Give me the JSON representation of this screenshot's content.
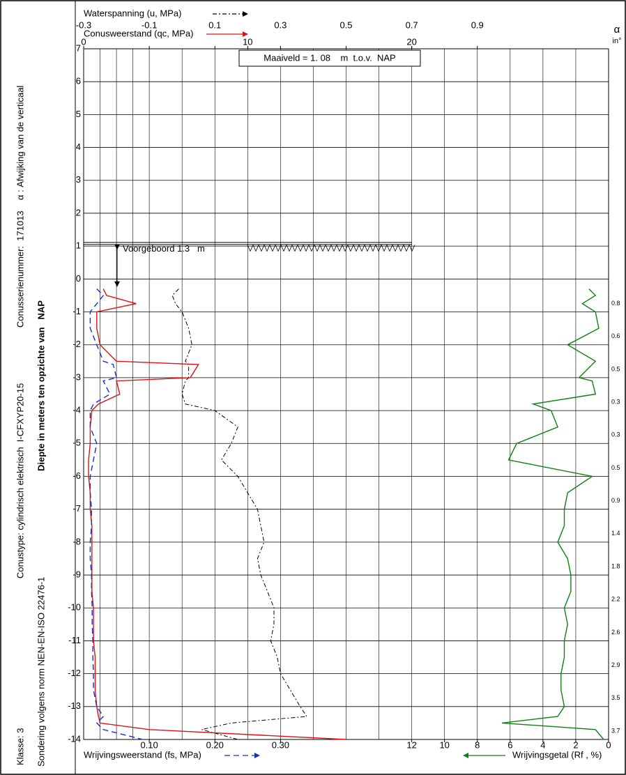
{
  "chart_data": {
    "type": "cpt",
    "ylabel": "Diepte in meters ten opzichte van   NAP",
    "ylim": [
      -14,
      7
    ],
    "yticks": [
      -14,
      -13,
      -12,
      -11,
      -10,
      -9,
      -8,
      -7,
      -6,
      -5,
      -4,
      -3,
      -2,
      -1,
      0,
      1,
      2,
      3,
      4,
      5,
      6,
      7
    ],
    "side_texts": [
      "Klasse: 3",
      "Conustype: cylindrisch elektrisch  I-CFXYP20-15",
      "Conusserienummer:  171013",
      "α : Afwijking van de verticaal",
      "Sondering volgens norm NEN-EN-ISO 22476-1"
    ],
    "maaiveld": {
      "value": 1.08,
      "label": "Maaiveld = 1. 08    m  t.o.v.  NAP"
    },
    "voorgeboord": {
      "value": 1.3,
      "label": "Voorgeboord 1.3   m"
    },
    "inclination_title": "α",
    "inclination_unit": "in°",
    "inclination": {
      "depth": [
        -1,
        -2,
        -3,
        -4,
        -5,
        -6,
        -7,
        -8,
        -9,
        -10,
        -11,
        -12,
        -13,
        -14
      ],
      "values": [
        0.8,
        0.6,
        0.5,
        0.3,
        0.3,
        0.5,
        0.9,
        1.4,
        1.8,
        2.2,
        2.6,
        2.9,
        3.5,
        3.7
      ]
    },
    "depth": [
      -0.3,
      -0.5,
      -0.75,
      -1,
      -1.5,
      -2,
      -2.5,
      -2.6,
      -3,
      -3.1,
      -3.5,
      -3.8,
      -4,
      -4.5,
      -5,
      -5.5,
      -6,
      -6.5,
      -7,
      -7.5,
      -8,
      -8.5,
      -9,
      -9.5,
      -10,
      -10.5,
      -11,
      -11.5,
      -12,
      -12.5,
      -13,
      -13.3,
      -13.5,
      -13.7,
      -14
    ],
    "series": [
      {
        "name": "Waterspanning (u, MPa)",
        "color": "#000000",
        "dash": "6 3 2 3",
        "position": "top1",
        "xlim": [
          -0.3,
          1.3
        ],
        "xticks": [
          -0.3,
          -0.1,
          0.1,
          0.3,
          0.5,
          0.7,
          0.9
        ],
        "values": [
          -0.01,
          -0.03,
          -0.02,
          0.0,
          0.02,
          0.03,
          0.01,
          0.02,
          0.02,
          0.01,
          0.0,
          0.01,
          0.1,
          0.17,
          0.15,
          0.12,
          0.17,
          0.2,
          0.23,
          0.24,
          0.25,
          0.23,
          0.24,
          0.26,
          0.28,
          0.28,
          0.27,
          0.29,
          0.3,
          0.33,
          0.36,
          0.38,
          0.15,
          0.06,
          0.17
        ]
      },
      {
        "name": "Conusweerstand (qc, MPa)",
        "color": "#e01010",
        "dash": "",
        "position": "top2",
        "xlim": [
          0,
          32
        ],
        "xticks": [
          0,
          10,
          20
        ],
        "values": [
          1.2,
          1.4,
          3.2,
          0.8,
          0.8,
          1.0,
          2.0,
          7.0,
          6.5,
          2.0,
          2.2,
          0.9,
          0.5,
          0.4,
          0.4,
          0.3,
          0.3,
          0.4,
          0.4,
          0.5,
          0.5,
          0.5,
          0.5,
          0.5,
          0.6,
          0.6,
          0.6,
          0.7,
          0.7,
          0.7,
          0.8,
          0.9,
          1.0,
          4.0,
          16.0
        ]
      },
      {
        "name": "Wrijvingsweerstand (fs, MPa)",
        "color": "#1030d0",
        "dash": "8 5",
        "position": "bottom1",
        "xlim": [
          0,
          0.8
        ],
        "xticks": [
          {
            "value": 0.1,
            "label": "0.10"
          },
          {
            "value": 0.2,
            "label": "0.20"
          },
          {
            "value": 0.3,
            "label": "0.30"
          }
        ],
        "values": [
          0.02,
          0.03,
          0.02,
          0.01,
          0.01,
          0.02,
          0.03,
          0.045,
          0.05,
          0.03,
          0.04,
          0.015,
          0.01,
          0.01,
          0.02,
          0.015,
          0.01,
          0.01,
          0.012,
          0.012,
          0.01,
          0.01,
          0.012,
          0.012,
          0.013,
          0.013,
          0.014,
          0.014,
          0.015,
          0.015,
          0.02,
          0.03,
          0.02,
          0.03,
          0.09
        ]
      },
      {
        "name": "Wrijvingsgetal (Rf , %)",
        "color": "#108010",
        "dash": "",
        "position": "bottom2",
        "xlim": [
          32,
          0
        ],
        "xticks": [
          12,
          10,
          8,
          6,
          4,
          2,
          0
        ],
        "values": [
          1.2,
          0.8,
          1.6,
          0.8,
          0.6,
          2.5,
          0.8,
          1.0,
          1.8,
          1.0,
          0.8,
          4.6,
          3.5,
          3.1,
          5.6,
          6.1,
          1.0,
          2.5,
          2.7,
          2.7,
          3.1,
          2.5,
          2.3,
          2.3,
          2.7,
          2.5,
          2.7,
          2.7,
          2.9,
          2.9,
          2.7,
          3.1,
          6.5,
          0.8,
          0.3
        ]
      }
    ]
  }
}
